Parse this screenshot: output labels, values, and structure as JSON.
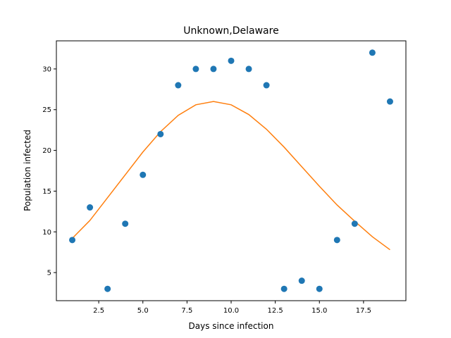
{
  "chart_data": {
    "type": "scatter",
    "title": "Unknown,Delaware",
    "xlabel": "Days since infection",
    "ylabel": "Population infected",
    "xlim": [
      0.1,
      19.9
    ],
    "ylim": [
      1.55,
      33.45
    ],
    "xticks": [
      2.5,
      5.0,
      7.5,
      10.0,
      12.5,
      15.0,
      17.5
    ],
    "xtick_labels": [
      "2.5",
      "5.0",
      "7.5",
      "10.0",
      "12.5",
      "15.0",
      "17.5"
    ],
    "yticks": [
      5,
      10,
      15,
      20,
      25,
      30
    ],
    "ytick_labels": [
      "5",
      "10",
      "15",
      "20",
      "25",
      "30"
    ],
    "grid": false,
    "series": [
      {
        "kind": "scatter",
        "color": "#1f77b4",
        "x": [
          1,
          2,
          3,
          4,
          5,
          6,
          7,
          8,
          9,
          10,
          11,
          12,
          13,
          14,
          15,
          16,
          17,
          18,
          19
        ],
        "y": [
          9,
          13,
          3,
          11,
          17,
          22,
          28,
          30,
          30,
          31,
          30,
          28,
          3,
          4,
          3,
          9,
          11,
          32,
          26
        ]
      },
      {
        "kind": "line",
        "color": "#ff7f0e",
        "x": [
          1,
          2,
          3,
          4,
          5,
          6,
          7,
          8,
          9,
          10,
          11,
          12,
          13,
          14,
          15,
          16,
          17,
          18,
          19
        ],
        "y": [
          9.2,
          11.4,
          14.2,
          17.0,
          19.8,
          22.3,
          24.3,
          25.6,
          26.0,
          25.6,
          24.4,
          22.6,
          20.4,
          18.0,
          15.6,
          13.3,
          11.3,
          9.4,
          7.8
        ]
      }
    ]
  }
}
